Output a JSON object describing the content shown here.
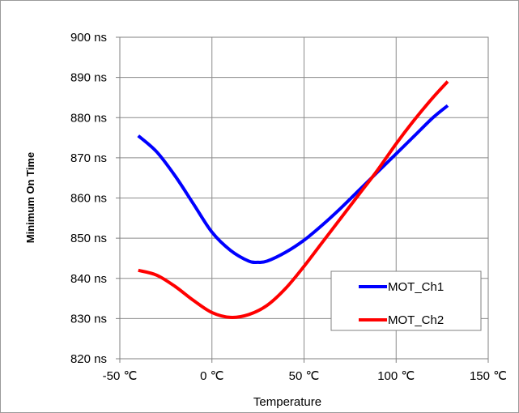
{
  "chart_data": {
    "type": "line",
    "xlabel": "Temperature",
    "ylabel": "Minimum On Time",
    "xlim": [
      -50,
      150
    ],
    "ylim": [
      820,
      900
    ],
    "x_ticks": [
      -50,
      0,
      50,
      100,
      150
    ],
    "x_tick_labels": [
      "-50 ℃",
      "0 ℃",
      "50 ℃",
      "100 ℃",
      "150 ℃"
    ],
    "y_ticks": [
      820,
      830,
      840,
      850,
      860,
      870,
      880,
      890,
      900
    ],
    "y_tick_labels": [
      "820 ns",
      "830 ns",
      "840 ns",
      "850 ns",
      "860 ns",
      "870 ns",
      "880 ns",
      "890 ns",
      "900 ns"
    ],
    "grid": true,
    "legend_position": "bottom-right",
    "series": [
      {
        "name": "MOT_Ch1",
        "color": "#0000ff",
        "x": [
          -40,
          -30,
          -20,
          -10,
          0,
          10,
          20,
          25,
          30,
          40,
          50,
          60,
          70,
          80,
          90,
          100,
          110,
          120,
          128
        ],
        "y": [
          875.5,
          871.5,
          865.5,
          858.5,
          851.5,
          847,
          844.3,
          844,
          844.3,
          846.5,
          849.5,
          853.3,
          857.5,
          862,
          866.5,
          871,
          875.5,
          880,
          883
        ]
      },
      {
        "name": "MOT_Ch2",
        "color": "#ff0000",
        "x": [
          -40,
          -30,
          -20,
          -10,
          0,
          10,
          20,
          30,
          40,
          50,
          60,
          70,
          80,
          90,
          100,
          110,
          120,
          128
        ],
        "y": [
          842,
          840.8,
          838,
          834.5,
          831.5,
          830.3,
          831,
          833.3,
          837.5,
          843,
          849,
          855,
          861,
          867,
          873.5,
          879.5,
          885,
          889
        ]
      }
    ]
  }
}
